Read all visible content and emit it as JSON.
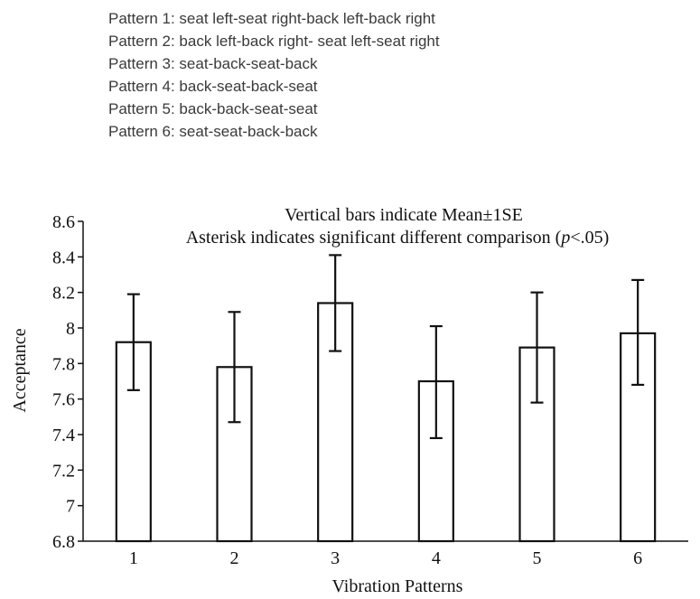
{
  "legend": [
    "Pattern 1: seat left-seat right-back left-back right",
    "Pattern 2: back left-back right- seat left-seat right",
    "Pattern 3: seat-back-seat-back",
    "Pattern 4: back-seat-back-seat",
    "Pattern 5: back-back-seat-seat",
    "Pattern 6: seat-seat-back-back"
  ],
  "chart_data": {
    "type": "bar",
    "title": "Vertical bars indicate Mean±1SE",
    "subtitle_parts": [
      "Asterisk indicates significant different comparison (",
      "p",
      "<.05)"
    ],
    "xlabel": "Vibration Patterns",
    "ylabel": "Acceptance",
    "categories": [
      "1",
      "2",
      "3",
      "4",
      "5",
      "6"
    ],
    "values": [
      7.92,
      7.78,
      8.14,
      7.7,
      7.89,
      7.97
    ],
    "error_upper": [
      8.19,
      8.09,
      8.41,
      8.01,
      8.2,
      8.27
    ],
    "error_lower": [
      7.65,
      7.47,
      7.87,
      7.38,
      7.58,
      7.68
    ],
    "ylim": [
      6.8,
      8.6
    ],
    "yticks": [
      "6.8",
      "7",
      "7.2",
      "7.4",
      "7.6",
      "7.8",
      "8",
      "8.2",
      "8.4",
      "8.6"
    ],
    "grid": false,
    "bar_fill": "#ffffff",
    "bar_stroke": "#111111"
  }
}
